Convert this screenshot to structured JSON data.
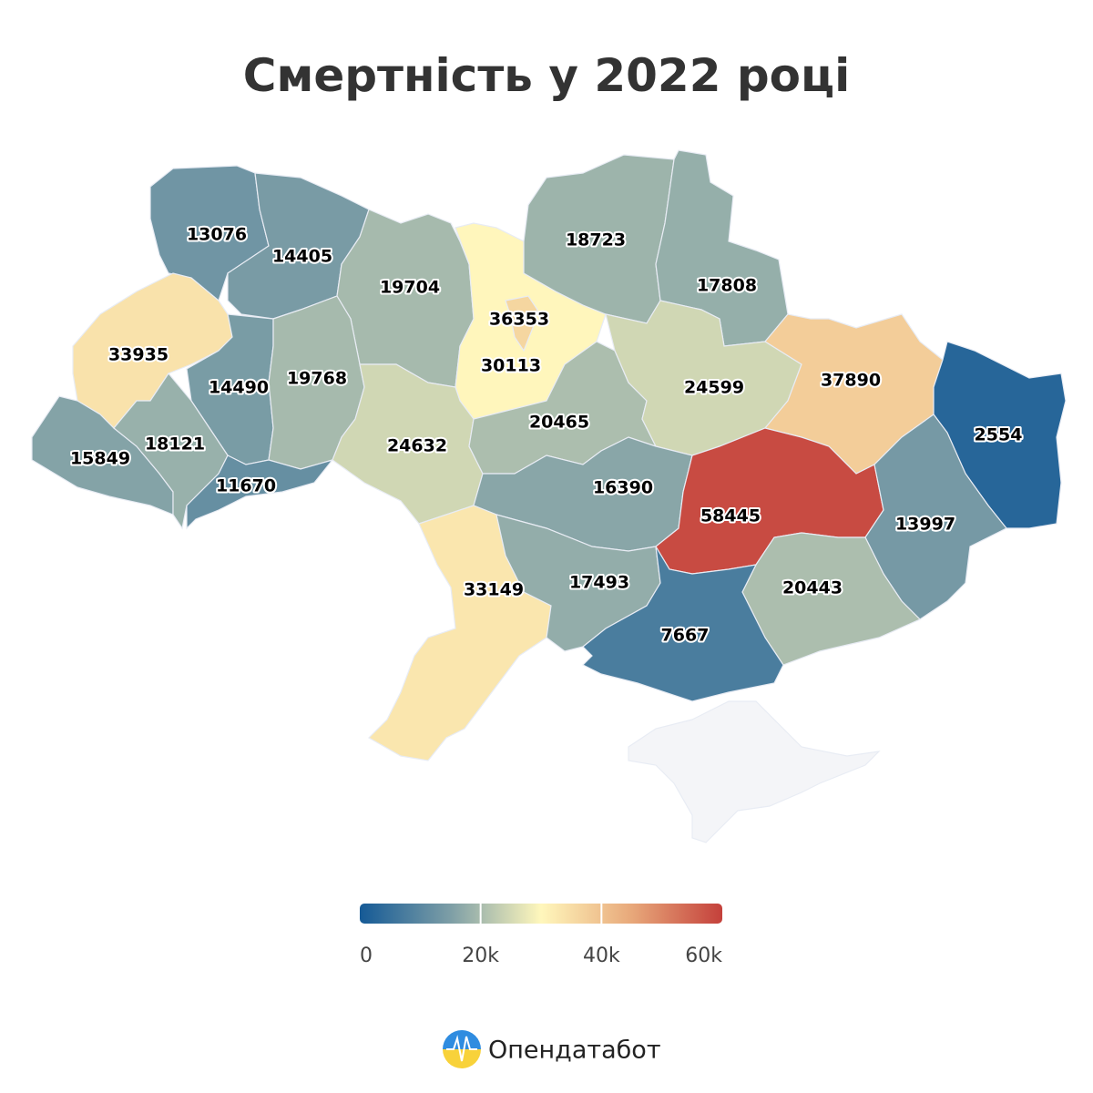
{
  "title": "Смертність у 2022 році",
  "map": {
    "type": "choropleth",
    "values": [
      13076,
      14405,
      19704,
      30113,
      36353,
      18723,
      17808,
      33935,
      14490,
      19768,
      15849,
      18121,
      11670,
      24632,
      20465,
      24599,
      37890,
      2554,
      16390,
      33149,
      17493,
      58445,
      13997,
      20443,
      7667
    ],
    "colorscale": [
      "#155a96",
      "#7d9ea6",
      "#fff7bc",
      "#e8a87a",
      "#c4403b"
    ],
    "range": [
      0,
      60000
    ],
    "ticks": [
      0,
      {
        "value": 20000,
        "label": "20k"
      },
      {
        "value": 40000,
        "label": "40k"
      },
      {
        "value": 60000,
        "label": "60k"
      }
    ]
  },
  "brand": "Опендатабот"
}
